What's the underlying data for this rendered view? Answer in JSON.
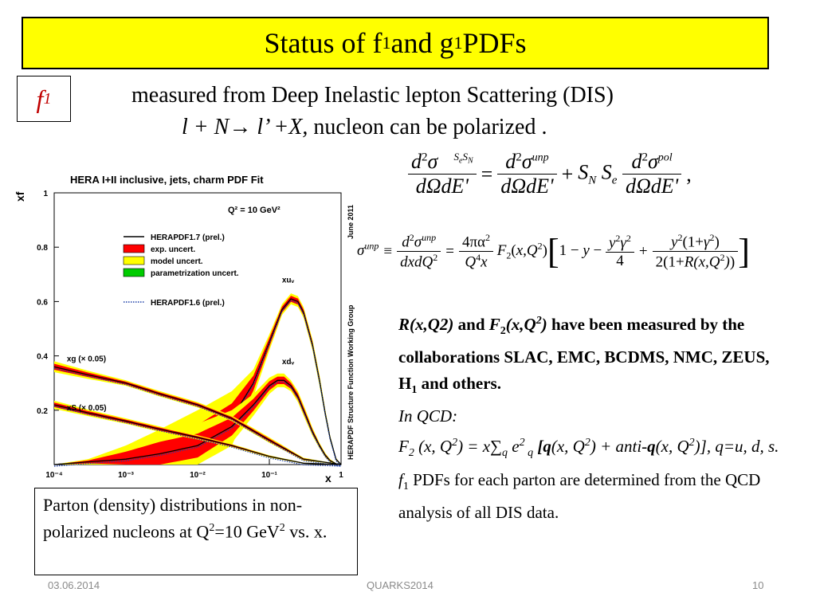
{
  "slide": {
    "title_parts": [
      "Status of f",
      "1",
      " and g",
      "1",
      " PDFs"
    ],
    "label_f": "f",
    "label_sub": "1",
    "intro_line1": "measured from  Deep Inelastic lepton  Scattering (DIS)",
    "intro_line2_reaction": "l + N→ l’ +X,",
    "intro_line2_rest": " nucleon  can be polarized .",
    "equation_cross_section": "d²σ⃗^{SeSN}/(dΩdE') = d²σ^{unp}/(dΩdE') + S_N S_e d²σ^{pol}/(dΩdE') ,",
    "equation_unpolarized": "σ^{unp} ≡ d²σ^{unp}/(dxdQ²) = 4πα²/(Q⁴x) F₂(x,Q²)[1 − y − y²γ²/4 + y²(1+γ²)/(2(1+R(x,Q²)))]",
    "caption_parts": [
      "Parton (density) distributions in non-polarized nucleons at Q",
      "2",
      "=10 GeV",
      "2",
      " vs. x."
    ],
    "right_text": {
      "p1_a": "R(x,Q2)",
      "p1_b": " and ",
      "p1_c": "F",
      "p1_c_sub": "2",
      "p1_d": "(x,Q",
      "p1_d_sup": "2",
      "p1_e": ")",
      "p1_f": " have been measured by the collaborations SLAC, EMC, BCDMS, NMC, ZEUS, H",
      "p1_f_sub": "1",
      "p1_g": " and others.",
      "p2": "In QCD:",
      "p3_a": "F",
      "p3_a_sub": "2",
      "p3_b": " (x, Q",
      "p3_b_sup": "2",
      "p3_c": ") = x∑",
      "p3_c_sub": "q",
      "p3_d": " e",
      "p3_d_sup": "2",
      "p3_d_sub": " q",
      "p3_e": " [",
      "p3_f": "q",
      "p3_g": "(x, Q",
      "p3_g_sup": "2",
      "p3_h": ") + anti-",
      "p3_i": "q",
      "p3_j": "(x, Q",
      "p3_j_sup": "2",
      "p3_k": ")], q=u, d, s.",
      "p4_a": "f",
      "p4_a_sub": "1",
      "p4_b": " PDFs for each parton are determined from the QCD analysis of all DIS data."
    },
    "footer": {
      "date": "03.06.2014",
      "conference": "QUARKS2014",
      "page": "10"
    }
  },
  "chart_data": {
    "type": "line",
    "title": "HERA I+II inclusive, jets, charm PDF Fit",
    "annotation": "Q² = 10 GeV²",
    "date_label": "June 2011",
    "side_label": "HERAPDF Structure Function Working Group",
    "xlabel": "x",
    "ylabel": "xf",
    "xscale": "log",
    "xlim": [
      0.0001,
      1
    ],
    "ylim": [
      0,
      1
    ],
    "x_ticks": [
      "10⁻⁴",
      "10⁻³",
      "10⁻²",
      "10⁻¹",
      "1"
    ],
    "y_ticks": [
      "0.2",
      "0.4",
      "0.6",
      "0.8",
      "1"
    ],
    "legend_position": "top-left",
    "legend": [
      {
        "label": "HERAPDF1.7 (prel.)",
        "style": "line",
        "color": "#000000"
      },
      {
        "label": "exp. uncert.",
        "style": "fill",
        "color": "#ff0000"
      },
      {
        "label": "model uncert.",
        "style": "fill",
        "color": "#ffff00"
      },
      {
        "label": "parametrization uncert.",
        "style": "fill",
        "color": "#00cc00"
      },
      {
        "label": "HERAPDF1.6 (prel.)",
        "style": "dotted",
        "color": "#1c3fa8"
      }
    ],
    "series": [
      {
        "name": "xuᵥ",
        "label_x": 0.15,
        "label_y": 0.67,
        "x": [
          0.0001,
          0.0003,
          0.001,
          0.003,
          0.01,
          0.03,
          0.06,
          0.1,
          0.15,
          0.2,
          0.25,
          0.3,
          0.4,
          0.5,
          0.6,
          0.7,
          0.85,
          1
        ],
        "y": [
          0.0,
          0.01,
          0.02,
          0.04,
          0.08,
          0.17,
          0.3,
          0.45,
          0.57,
          0.61,
          0.6,
          0.56,
          0.44,
          0.31,
          0.19,
          0.1,
          0.02,
          0.0
        ],
        "band": [
          0.0,
          0.01,
          0.05,
          0.09,
          0.12,
          0.1,
          0.05,
          0.03,
          0.02,
          0.02,
          0.02,
          0.02,
          0.02,
          0.02,
          0.015,
          0.01,
          0.005,
          0.0
        ]
      },
      {
        "name": "xdᵥ",
        "label_x": 0.15,
        "label_y": 0.37,
        "x": [
          0.0001,
          0.0003,
          0.001,
          0.003,
          0.01,
          0.03,
          0.06,
          0.1,
          0.13,
          0.16,
          0.2,
          0.25,
          0.3,
          0.4,
          0.5,
          0.6,
          0.7,
          0.85,
          1
        ],
        "y": [
          0.0,
          0.01,
          0.02,
          0.04,
          0.07,
          0.14,
          0.22,
          0.29,
          0.31,
          0.31,
          0.29,
          0.25,
          0.2,
          0.12,
          0.07,
          0.035,
          0.015,
          0.003,
          0.0
        ],
        "band": [
          0.0,
          0.01,
          0.05,
          0.08,
          0.08,
          0.06,
          0.04,
          0.03,
          0.025,
          0.025,
          0.02,
          0.02,
          0.02,
          0.015,
          0.01,
          0.008,
          0.005,
          0.002,
          0.0
        ]
      },
      {
        "name": "xg (× 0.05)",
        "label_x": 0.00015,
        "label_y": 0.38,
        "x": [
          0.0001,
          0.0003,
          0.001,
          0.003,
          0.01,
          0.03,
          0.1,
          0.3,
          1
        ],
        "y": [
          0.36,
          0.33,
          0.3,
          0.26,
          0.22,
          0.17,
          0.09,
          0.02,
          0.0
        ],
        "band": [
          0.02,
          0.015,
          0.01,
          0.01,
          0.01,
          0.01,
          0.01,
          0.005,
          0.0
        ]
      },
      {
        "name": "xS (× 0.05)",
        "label_x": 0.00015,
        "label_y": 0.2,
        "x": [
          0.0001,
          0.0003,
          0.001,
          0.003,
          0.01,
          0.03,
          0.1,
          0.3,
          1
        ],
        "y": [
          0.22,
          0.19,
          0.16,
          0.13,
          0.1,
          0.07,
          0.03,
          0.005,
          0.0
        ],
        "band": [
          0.015,
          0.012,
          0.01,
          0.01,
          0.008,
          0.006,
          0.004,
          0.002,
          0.0
        ]
      }
    ]
  }
}
